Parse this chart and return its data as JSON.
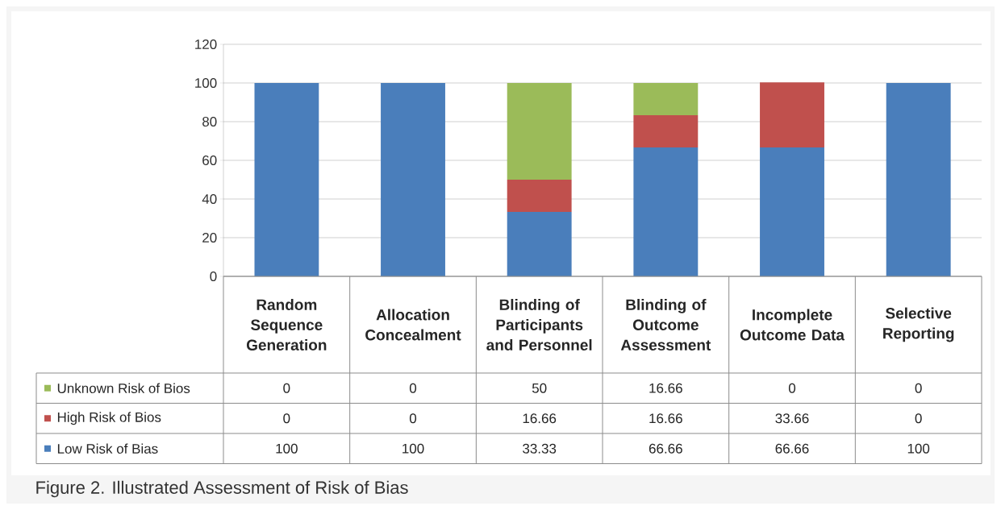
{
  "chart_data": {
    "type": "bar",
    "stacked": true,
    "categories": [
      "Random Sequence Generation",
      "Allocation Concealment",
      "Blinding of Participants and Personnel",
      "Blinding of Outcome Assessment",
      "Incomplete Outcome Data",
      "Selective Reporting"
    ],
    "series": [
      {
        "name": "Low Risk of Bias",
        "color": "#4a7ebb",
        "values": [
          100,
          100,
          33.33,
          66.66,
          66.66,
          100
        ]
      },
      {
        "name": "High Risk of Bios",
        "color": "#c0504d",
        "values": [
          0,
          0,
          16.66,
          16.66,
          33.66,
          0
        ]
      },
      {
        "name": "Unknown Risk of Bios",
        "color": "#9bbb59",
        "values": [
          0,
          0,
          50,
          16.66,
          0,
          0
        ]
      }
    ],
    "ylim": [
      0,
      120
    ],
    "yticks": [
      0,
      20,
      40,
      60,
      80,
      100,
      120
    ],
    "grid": "y",
    "legend": "bottom",
    "data_labels": true,
    "annotations": [
      "Figure 2. Illustrated Assessment of Risk of Bias"
    ]
  }
}
